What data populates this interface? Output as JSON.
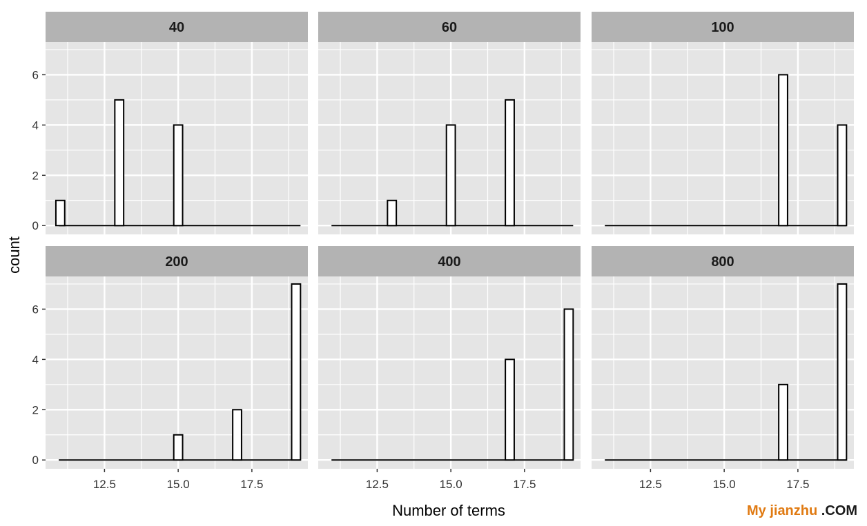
{
  "chart_data": {
    "type": "bar",
    "xlabel": "Number of terms",
    "ylabel": "count",
    "xlim": [
      10.5,
      19.4
    ],
    "ylim": [
      -0.35,
      7.3
    ],
    "x_ticks": [
      12.5,
      15.0,
      17.5
    ],
    "x_tick_labels": [
      "12.5",
      "15.0",
      "17.5"
    ],
    "y_ticks": [
      0,
      2,
      4,
      6
    ],
    "y_tick_labels": [
      "0",
      "2",
      "4",
      "6"
    ],
    "grid": true,
    "colors": {
      "panel_background": "#e5e5e5",
      "strip_background": "#b3b3b3",
      "gridline": "#ffffff",
      "bar_fill": "#ffffff",
      "bar_outline": "#000000"
    },
    "bins": [
      11,
      13,
      15,
      17,
      19
    ],
    "bin_width": 0.3,
    "facets": [
      {
        "label": "40",
        "counts": [
          1,
          5,
          4,
          0,
          0
        ]
      },
      {
        "label": "60",
        "counts": [
          0,
          1,
          4,
          5,
          0
        ]
      },
      {
        "label": "100",
        "counts": [
          0,
          0,
          0,
          6,
          4
        ]
      },
      {
        "label": "200",
        "counts": [
          0,
          0,
          1,
          2,
          7
        ]
      },
      {
        "label": "400",
        "counts": [
          0,
          0,
          0,
          4,
          6
        ]
      },
      {
        "label": "800",
        "counts": [
          0,
          0,
          0,
          3,
          7
        ]
      }
    ]
  },
  "watermark": {
    "main": "My jianzhu",
    "suffix": " .COM"
  }
}
